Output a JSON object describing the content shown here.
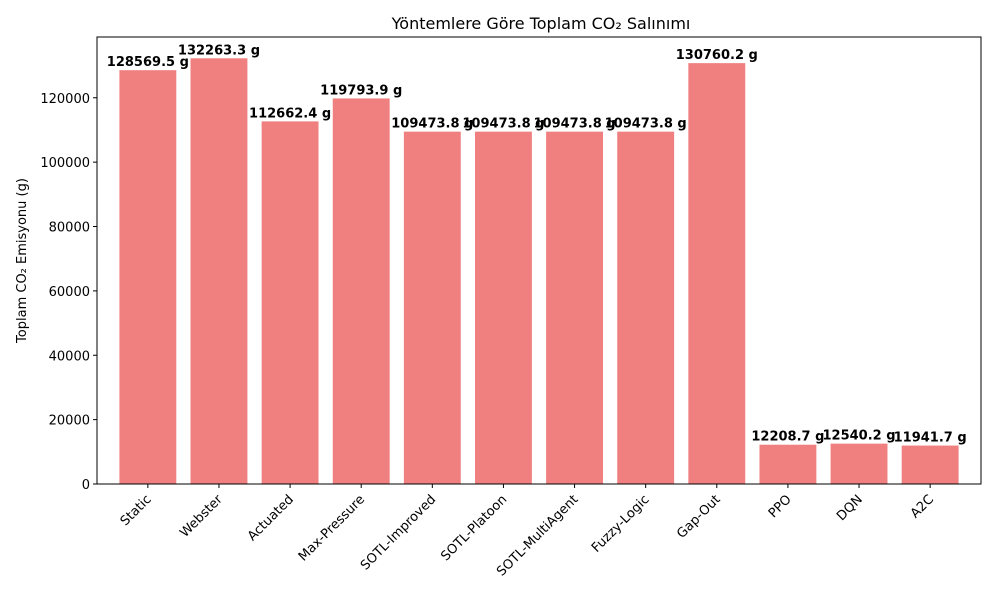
{
  "chart_data": {
    "type": "bar",
    "title": "Yöntemlere Göre Toplam CO₂ Salınımı",
    "xlabel": "",
    "ylabel": "Toplam CO₂ Emisyonu (g)",
    "categories": [
      "Static",
      "Webster",
      "Actuated",
      "Max-Pressure",
      "SOTL-Improved",
      "SOTL-Platoon",
      "SOTL-MultiAgent",
      "Fuzzy-Logic",
      "Gap-Out",
      "PPO",
      "DQN",
      "A2C"
    ],
    "values": [
      128569.5,
      132263.3,
      112662.4,
      119793.9,
      109473.8,
      109473.8,
      109473.8,
      109473.8,
      130760.2,
      12208.7,
      12540.2,
      11941.7
    ],
    "data_labels": [
      "128569.5 g",
      "132263.3 g",
      "112662.4 g",
      "119793.9 g",
      "109473.8 g",
      "109473.8 g",
      "109473.8 g",
      "109473.8 g",
      "130760.2 g",
      "12208.7 g",
      "12540.2 g",
      "11941.7 g"
    ],
    "ylim": [
      0,
      138877
    ],
    "yticks": [
      0,
      20000,
      40000,
      60000,
      80000,
      100000,
      120000
    ],
    "grid": false,
    "bar_color": "#f08080"
  }
}
